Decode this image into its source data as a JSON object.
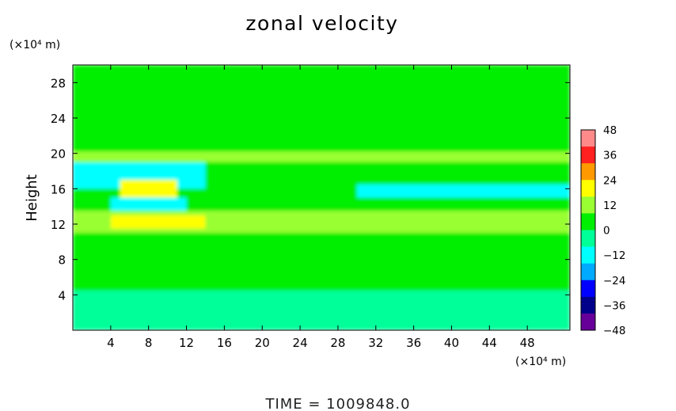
{
  "chart_data": {
    "type": "heatmap",
    "title": "zonal velocity",
    "ylabel": "Height",
    "xlabel": "",
    "y_unit": "(×10⁴ m)",
    "x_unit": "(×10⁴ m)",
    "footer": "TIME = 1009848.0",
    "xlim": [
      0,
      52.5
    ],
    "ylim": [
      0,
      30
    ],
    "x_ticks": [
      4,
      8,
      12,
      16,
      20,
      24,
      28,
      32,
      36,
      40,
      44,
      48
    ],
    "y_ticks": [
      4,
      8,
      12,
      16,
      20,
      24,
      28
    ],
    "colorbar": {
      "ticks": [
        48,
        36,
        24,
        12,
        0,
        -12,
        -24,
        -36,
        -48
      ],
      "range": [
        -48,
        48
      ],
      "colors": [
        "#ff8a8a",
        "#ff2020",
        "#ff9900",
        "#ffff00",
        "#99ff33",
        "#00ee00",
        "#00ff99",
        "#00ffff",
        "#00aaff",
        "#0000ff",
        "#00008b",
        "#660099"
      ]
    },
    "field": [
      {
        "x": [
          0,
          52.5
        ],
        "y": [
          0,
          30
        ],
        "value": 2
      },
      {
        "x": [
          0,
          52.5
        ],
        "y": [
          19,
          20.2
        ],
        "value": 10
      },
      {
        "x": [
          0,
          52.5
        ],
        "y": [
          16.5,
          19
        ],
        "value": 4
      },
      {
        "x": [
          0,
          14
        ],
        "y": [
          16,
          19
        ],
        "value": -8
      },
      {
        "x": [
          30,
          52.5
        ],
        "y": [
          14.8,
          16.5
        ],
        "value": -10
      },
      {
        "x": [
          5,
          11
        ],
        "y": [
          15,
          17
        ],
        "value": 20
      },
      {
        "x": [
          0,
          52.5
        ],
        "y": [
          13.5,
          15
        ],
        "value": 8
      },
      {
        "x": [
          4,
          12
        ],
        "y": [
          13.5,
          15
        ],
        "value": -8
      },
      {
        "x": [
          0,
          52.5
        ],
        "y": [
          11,
          13.5
        ],
        "value": 12
      },
      {
        "x": [
          4,
          14
        ],
        "y": [
          11.5,
          13
        ],
        "value": 20
      },
      {
        "x": [
          36,
          52.5
        ],
        "y": [
          11,
          13
        ],
        "value": 14
      },
      {
        "x": [
          0,
          52.5
        ],
        "y": [
          8,
          11
        ],
        "value": 5
      },
      {
        "x": [
          0,
          52.5
        ],
        "y": [
          5,
          8
        ],
        "value": 3
      },
      {
        "x": [
          0,
          52.5
        ],
        "y": [
          0,
          4.5
        ],
        "value": -2
      }
    ]
  }
}
